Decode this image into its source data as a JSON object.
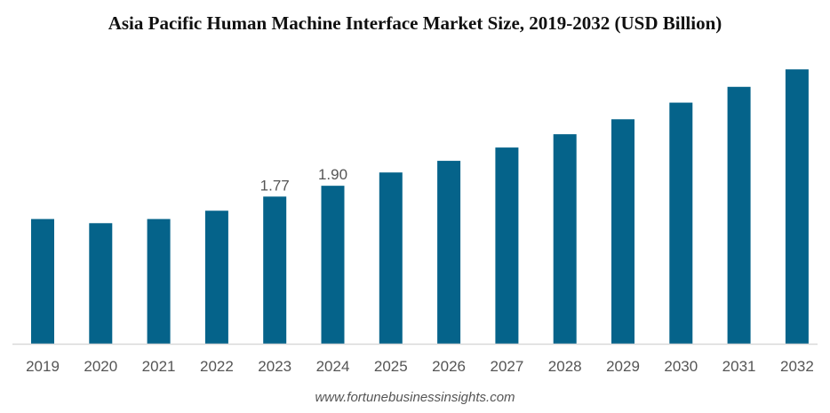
{
  "chart_data": {
    "type": "bar",
    "title": "Asia Pacific Human Machine Interface Market Size, 2019-2032 (USD Billion)",
    "xlabel": "",
    "ylabel": "",
    "categories": [
      "2019",
      "2020",
      "2021",
      "2022",
      "2023",
      "2024",
      "2025",
      "2026",
      "2027",
      "2028",
      "2029",
      "2030",
      "2031",
      "2032"
    ],
    "values": [
      1.5,
      1.45,
      1.5,
      1.6,
      1.77,
      1.9,
      2.06,
      2.2,
      2.36,
      2.52,
      2.7,
      2.9,
      3.09,
      3.3
    ],
    "data_labels": {
      "2023": "1.77",
      "2024": "1.90"
    },
    "ylim": [
      0,
      3.3
    ],
    "grid": false,
    "legend": "none",
    "bar_color": "#05638a",
    "axis_color": "#d9d9d9"
  },
  "source": "www.fortunebusinessinsights.com"
}
